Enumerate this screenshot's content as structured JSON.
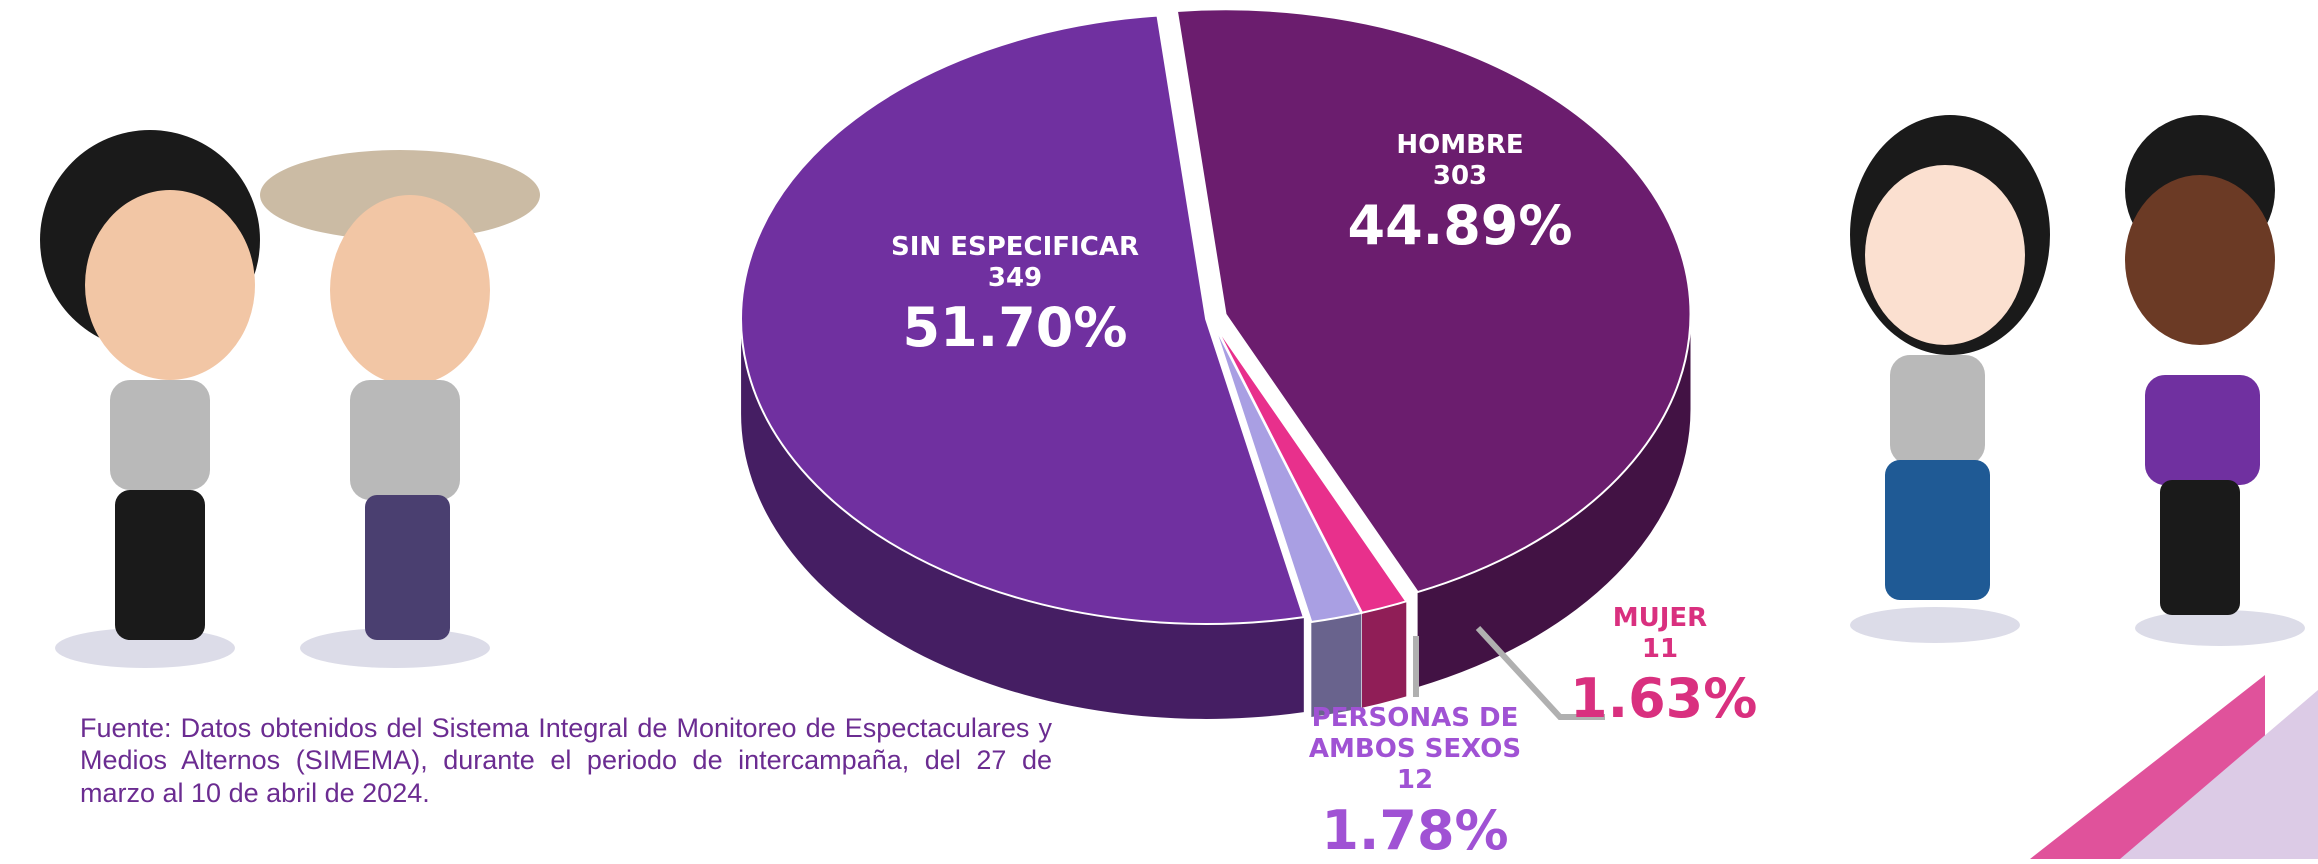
{
  "chart_data": {
    "type": "pie",
    "categories": [
      "HOMBRE",
      "MUJER",
      "PERSONAS DE AMBOS SEXOS",
      "SIN ESPECIFICAR"
    ],
    "values": [
      303,
      11,
      12,
      349
    ],
    "percentages": [
      44.89,
      1.63,
      1.78,
      51.7
    ],
    "percentage_labels": [
      "44.89%",
      "1.63%",
      "1.78%",
      "51.70%"
    ],
    "colors": [
      "#6b1d6e",
      "#e8308c",
      "#a99fe3",
      "#7030a0"
    ],
    "label_colors": [
      "#ffffff",
      "#d9307f",
      "#a052d4",
      "#ffffff"
    ],
    "source": "Fuente: Datos obtenidos del Sistema Integral de Monitoreo de Espectaculares y Medios Alternos (SIMEMA), durante el periodo de intercampaña, del 27 de marzo al 10 de abril de 2024."
  }
}
